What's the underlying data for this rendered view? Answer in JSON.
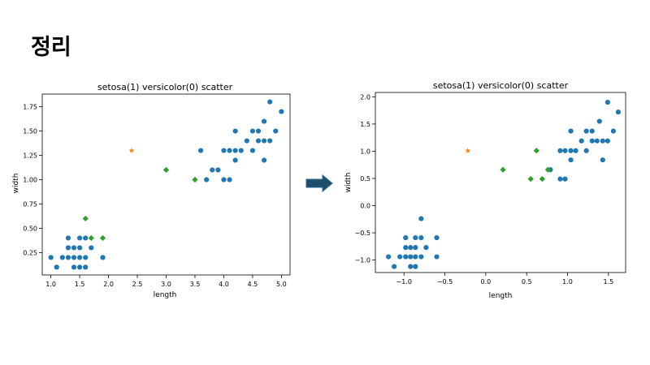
{
  "slide": {
    "title": "정리"
  },
  "chart_data": [
    {
      "type": "scatter",
      "title": "setosa(1) versicolor(0) scatter",
      "xlabel": "length",
      "ylabel": "width",
      "xlim": [
        0.85,
        5.15
      ],
      "ylim": [
        0.02,
        1.88
      ],
      "xticks": [
        "1.0",
        "1.5",
        "2.0",
        "2.5",
        "3.0",
        "3.5",
        "4.0",
        "4.5",
        "5.0"
      ],
      "yticks": [
        "0.25",
        "0.50",
        "0.75",
        "1.00",
        "1.25",
        "1.50",
        "1.75"
      ],
      "grid": false,
      "series": [
        {
          "marker": "circle",
          "color": "#1f77b4",
          "points": [
            [
              1.0,
              0.2
            ],
            [
              1.1,
              0.1
            ],
            [
              1.2,
              0.2
            ],
            [
              1.3,
              0.2
            ],
            [
              1.3,
              0.3
            ],
            [
              1.3,
              0.4
            ],
            [
              1.4,
              0.1
            ],
            [
              1.4,
              0.2
            ],
            [
              1.4,
              0.3
            ],
            [
              1.5,
              0.1
            ],
            [
              1.5,
              0.2
            ],
            [
              1.5,
              0.4
            ],
            [
              1.5,
              0.3
            ],
            [
              1.6,
              0.2
            ],
            [
              1.6,
              0.4
            ],
            [
              1.6,
              0.1
            ],
            [
              1.7,
              0.3
            ],
            [
              1.9,
              0.2
            ],
            [
              3.6,
              1.3
            ],
            [
              3.7,
              1.0
            ],
            [
              3.8,
              1.1
            ],
            [
              3.9,
              1.1
            ],
            [
              4.0,
              1.3
            ],
            [
              4.0,
              1.0
            ],
            [
              4.1,
              1.3
            ],
            [
              4.1,
              1.0
            ],
            [
              4.2,
              1.3
            ],
            [
              4.2,
              1.5
            ],
            [
              4.2,
              1.2
            ],
            [
              4.3,
              1.3
            ],
            [
              4.4,
              1.4
            ],
            [
              4.5,
              1.3
            ],
            [
              4.5,
              1.5
            ],
            [
              4.6,
              1.5
            ],
            [
              4.6,
              1.4
            ],
            [
              4.7,
              1.6
            ],
            [
              4.7,
              1.4
            ],
            [
              4.7,
              1.2
            ],
            [
              4.8,
              1.8
            ],
            [
              4.8,
              1.4
            ],
            [
              4.9,
              1.5
            ],
            [
              5.0,
              1.7
            ]
          ]
        },
        {
          "marker": "diamond",
          "color": "#2ca02c",
          "points": [
            [
              1.6,
              0.6
            ],
            [
              1.7,
              0.4
            ],
            [
              1.9,
              0.4
            ],
            [
              3.0,
              1.1
            ],
            [
              3.5,
              1.0
            ]
          ]
        },
        {
          "marker": "star",
          "color": "#ff7f0e",
          "points": [
            [
              2.4,
              1.3
            ]
          ]
        }
      ]
    },
    {
      "type": "scatter",
      "title": "setosa(1) versicolor(0) scatter",
      "xlabel": "length",
      "ylabel": "width",
      "xlim": [
        -1.35,
        1.71
      ],
      "ylim": [
        -1.23,
        2.08
      ],
      "xticks": [
        "-1.0",
        "-0.5",
        "0.0",
        "0.5",
        "1.0",
        "1.5"
      ],
      "yticks": [
        "-1.0",
        "-0.5",
        "0.0",
        "0.5",
        "1.0",
        "1.5",
        "2.0"
      ],
      "grid": false,
      "series": [
        {
          "marker": "circle",
          "color": "#1f77b4",
          "points": [
            [
              -1.19,
              -0.94
            ],
            [
              -1.12,
              -1.12
            ],
            [
              -1.05,
              -0.94
            ],
            [
              -0.98,
              -0.94
            ],
            [
              -0.98,
              -0.77
            ],
            [
              -0.98,
              -0.59
            ],
            [
              -0.92,
              -1.12
            ],
            [
              -0.92,
              -0.94
            ],
            [
              -0.92,
              -0.77
            ],
            [
              -0.86,
              -1.12
            ],
            [
              -0.86,
              -0.94
            ],
            [
              -0.86,
              -0.59
            ],
            [
              -0.86,
              -0.77
            ],
            [
              -0.79,
              -0.94
            ],
            [
              -0.79,
              -0.59
            ],
            [
              -0.79,
              -0.24
            ],
            [
              -0.73,
              -0.77
            ],
            [
              -0.6,
              -0.94
            ],
            [
              -0.6,
              -0.59
            ],
            [
              0.91,
              0.49
            ],
            [
              0.97,
              0.49
            ],
            [
              0.79,
              0.66
            ],
            [
              0.91,
              1.01
            ],
            [
              0.97,
              1.01
            ],
            [
              1.04,
              1.01
            ],
            [
              1.1,
              1.01
            ],
            [
              1.17,
              1.19
            ],
            [
              1.23,
              1.01
            ],
            [
              1.23,
              1.37
            ],
            [
              1.3,
              1.37
            ],
            [
              1.36,
              1.19
            ],
            [
              1.43,
              1.19
            ],
            [
              1.43,
              0.84
            ],
            [
              1.04,
              0.84
            ],
            [
              1.04,
              1.37
            ],
            [
              1.49,
              1.9
            ],
            [
              1.49,
              1.19
            ],
            [
              1.56,
              1.37
            ],
            [
              1.62,
              1.72
            ],
            [
              1.3,
              1.19
            ],
            [
              1.39,
              1.55
            ]
          ]
        },
        {
          "marker": "diamond",
          "color": "#2ca02c",
          "points": [
            [
              0.21,
              0.66
            ],
            [
              0.55,
              0.49
            ],
            [
              0.62,
              1.01
            ],
            [
              0.69,
              0.49
            ],
            [
              0.76,
              0.66
            ]
          ]
        },
        {
          "marker": "star",
          "color": "#ff7f0e",
          "points": [
            [
              -0.22,
              1.01
            ]
          ]
        }
      ]
    }
  ]
}
